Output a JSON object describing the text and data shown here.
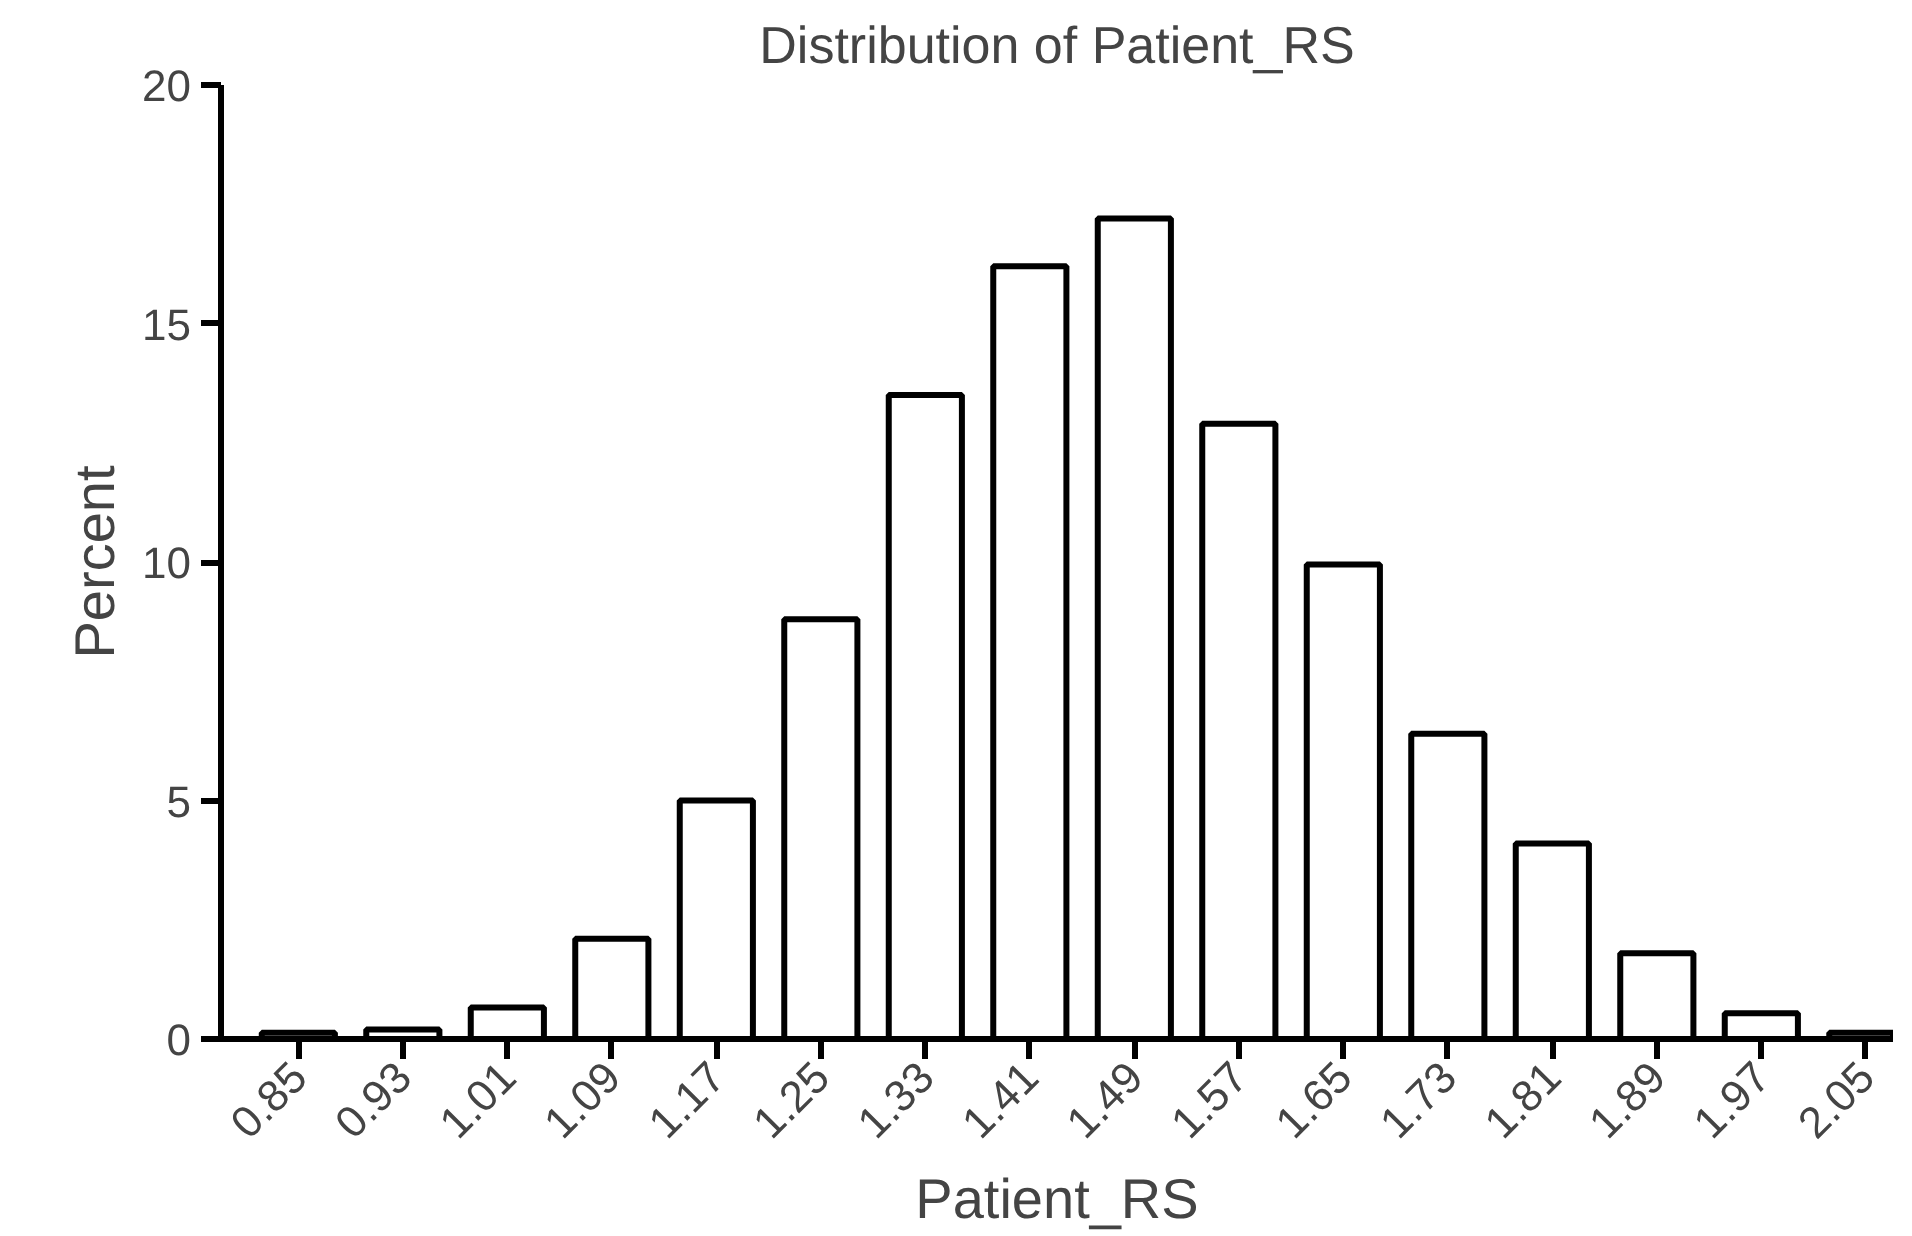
{
  "chart_data": {
    "type": "bar",
    "title": "Distribution of Patient_RS",
    "xlabel": "Patient_RS",
    "ylabel": "Percent",
    "categories": [
      "0.85",
      "0.93",
      "1.01",
      "1.09",
      "1.17",
      "1.25",
      "1.33",
      "1.41",
      "1.49",
      "1.57",
      "1.65",
      "1.73",
      "1.81",
      "1.89",
      "1.97",
      "2.05"
    ],
    "values": [
      0.13,
      0.2,
      0.66,
      2.1,
      5.0,
      8.8,
      13.5,
      16.2,
      17.2,
      12.9,
      9.95,
      6.4,
      4.1,
      1.8,
      0.54,
      0.13
    ],
    "color": "#ffffff",
    "ylim": [
      0,
      20
    ],
    "yticks": [
      0,
      5,
      10,
      15,
      20
    ],
    "grid": false
  }
}
